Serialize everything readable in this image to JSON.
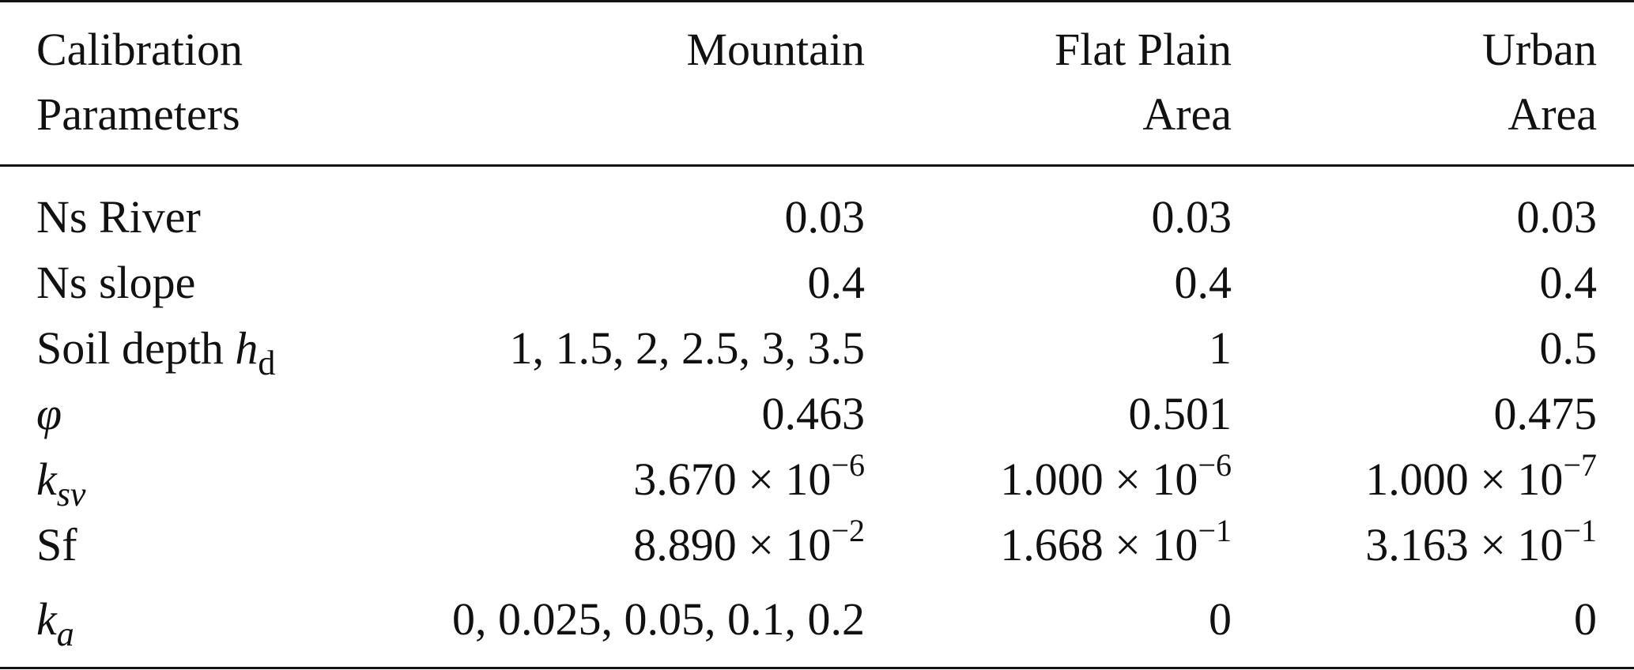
{
  "table": {
    "headers": [
      {
        "line1": "Calibration",
        "line2": "Parameters"
      },
      {
        "line1": "Mountain",
        "line2": ""
      },
      {
        "line1": "Flat Plain",
        "line2": "Area"
      },
      {
        "line1": "Urban",
        "line2": "Area"
      }
    ],
    "rows": [
      {
        "label_main": "Ns River",
        "label_sub": "",
        "mountain": {
          "mantissa": "0.03",
          "exp": ""
        },
        "flat": {
          "mantissa": "0.03",
          "exp": ""
        },
        "urban": {
          "mantissa": "0.03",
          "exp": ""
        }
      },
      {
        "label_main": "Ns slope",
        "label_sub": "",
        "mountain": {
          "mantissa": "0.4",
          "exp": ""
        },
        "flat": {
          "mantissa": "0.4",
          "exp": ""
        },
        "urban": {
          "mantissa": "0.4",
          "exp": ""
        }
      },
      {
        "label_main": "Soil depth ",
        "label_math": "h",
        "label_sub": "d",
        "mountain": {
          "mantissa": "1, 1.5, 2, 2.5, 3, 3.5",
          "exp": ""
        },
        "flat": {
          "mantissa": "1",
          "exp": ""
        },
        "urban": {
          "mantissa": "0.5",
          "exp": ""
        }
      },
      {
        "label_math": "φ",
        "label_sub": "",
        "mountain": {
          "mantissa": "0.463",
          "exp": ""
        },
        "flat": {
          "mantissa": "0.501",
          "exp": ""
        },
        "urban": {
          "mantissa": "0.475",
          "exp": ""
        }
      },
      {
        "label_math": "k",
        "label_sub": "sv",
        "mountain": {
          "mantissa": "3.670 × 10",
          "exp": "−6"
        },
        "flat": {
          "mantissa": "1.000 × 10",
          "exp": "−6"
        },
        "urban": {
          "mantissa": "1.000 × 10",
          "exp": "−7"
        }
      },
      {
        "label_main": "Sf",
        "label_sub": "",
        "mountain": {
          "mantissa": "8.890 × 10",
          "exp": "−2"
        },
        "flat": {
          "mantissa": "1.668 × 10",
          "exp": "−1"
        },
        "urban": {
          "mantissa": "3.163 × 10",
          "exp": "−1"
        }
      },
      {
        "label_math": "k",
        "label_sub": "a",
        "mountain": {
          "mantissa": "0, 0.025, 0.05, 0.1, 0.2",
          "exp": ""
        },
        "flat": {
          "mantissa": "0",
          "exp": ""
        },
        "urban": {
          "mantissa": "0",
          "exp": ""
        }
      }
    ]
  }
}
